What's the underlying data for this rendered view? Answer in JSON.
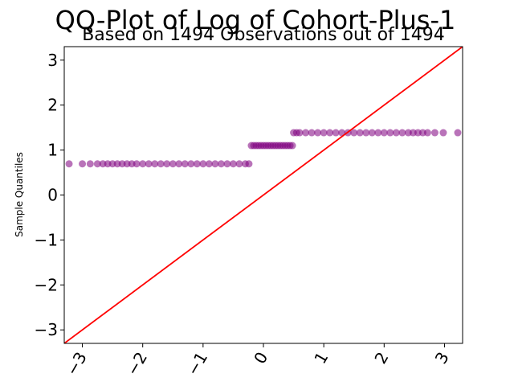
{
  "chart_data": {
    "type": "scatter",
    "title": "QQ-Plot of Log of Cohort-Plus-1",
    "subtitle": "Based on 1494 Observations out of 1494",
    "xlabel": "",
    "ylabel": "Sample Quantiles",
    "xlim": [
      -3.3,
      3.3
    ],
    "ylim": [
      -3.3,
      3.3
    ],
    "xticks": [
      -3,
      -2,
      -1,
      0,
      1,
      2,
      3
    ],
    "yticks": [
      -3,
      -2,
      -1,
      0,
      1,
      2,
      3
    ],
    "xtick_labels": [
      "−3",
      "−2",
      "−1",
      "0",
      "1",
      "2",
      "3"
    ],
    "ytick_labels": [
      "−3",
      "−2",
      "−1",
      "0",
      "1",
      "2",
      "3"
    ],
    "grid": false,
    "point_color": "#800080",
    "line_color": "#ff0000",
    "reference_line": {
      "slope": 1,
      "intercept": 0
    },
    "series": [
      {
        "x": [
          -3.22,
          -3.0,
          -2.87,
          -2.75,
          -2.66,
          -2.58,
          -2.5,
          -2.42,
          -2.34,
          -2.26,
          -2.18,
          -2.1,
          -2.0,
          -1.9,
          -1.8,
          -1.7,
          -1.6,
          -1.5,
          -1.4,
          -1.3,
          -1.2,
          -1.1,
          -1.0,
          -0.9,
          -0.8,
          -0.7,
          -0.6,
          -0.5,
          -0.4,
          -0.3,
          -0.24,
          -0.2,
          -0.16,
          -0.12,
          -0.08,
          -0.04,
          0.0,
          0.04,
          0.08,
          0.12,
          0.16,
          0.2,
          0.24,
          0.28,
          0.32,
          0.36,
          0.4,
          0.44,
          0.48,
          0.5,
          0.55,
          0.6,
          0.7,
          0.8,
          0.9,
          1.0,
          1.1,
          1.2,
          1.3,
          1.4,
          1.5,
          1.6,
          1.7,
          1.8,
          1.9,
          2.0,
          2.1,
          2.2,
          2.3,
          2.4,
          2.48,
          2.56,
          2.64,
          2.72,
          2.84,
          2.98,
          3.22
        ],
        "y": [
          0.693,
          0.693,
          0.693,
          0.693,
          0.693,
          0.693,
          0.693,
          0.693,
          0.693,
          0.693,
          0.693,
          0.693,
          0.693,
          0.693,
          0.693,
          0.693,
          0.693,
          0.693,
          0.693,
          0.693,
          0.693,
          0.693,
          0.693,
          0.693,
          0.693,
          0.693,
          0.693,
          0.693,
          0.693,
          0.693,
          0.693,
          1.099,
          1.099,
          1.099,
          1.099,
          1.099,
          1.099,
          1.099,
          1.099,
          1.099,
          1.099,
          1.099,
          1.099,
          1.099,
          1.099,
          1.099,
          1.099,
          1.099,
          1.099,
          1.386,
          1.386,
          1.386,
          1.386,
          1.386,
          1.386,
          1.386,
          1.386,
          1.386,
          1.386,
          1.386,
          1.386,
          1.386,
          1.386,
          1.386,
          1.386,
          1.386,
          1.386,
          1.386,
          1.386,
          1.386,
          1.386,
          1.386,
          1.386,
          1.386,
          1.386,
          1.386,
          1.386
        ]
      }
    ]
  }
}
